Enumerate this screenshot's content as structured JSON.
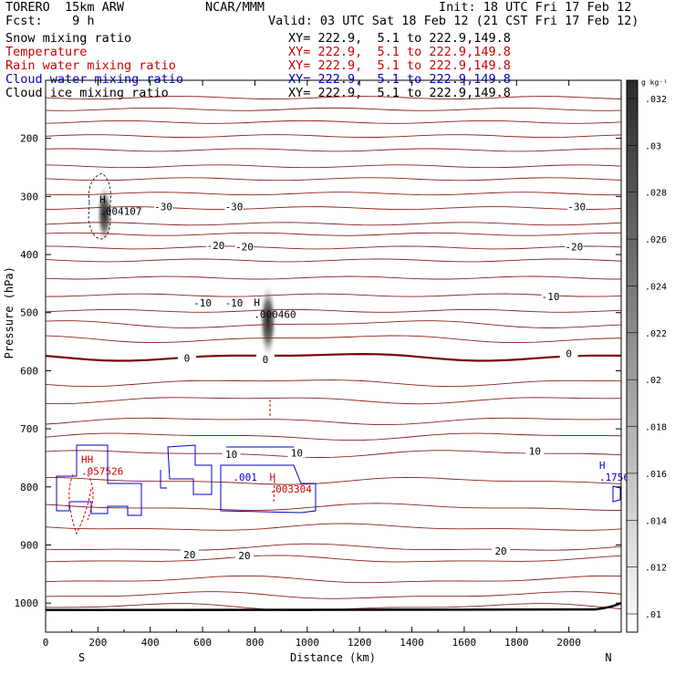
{
  "header": {
    "model": "TORERO  15km ARW",
    "center": "NCAR/MMM",
    "init": "Init: 18 UTC Fri 17 Feb 12",
    "fcst_label": "Fcst:    9 h",
    "valid": "Valid: 03 UTC Sat 18 Feb 12 (21 CST Fri 17 Feb 12)"
  },
  "fields": [
    {
      "name": "Snow mixing ratio",
      "xy": "XY= 222.9,  5.1 to 222.9,149.8",
      "color": "#000000"
    },
    {
      "name": "Temperature",
      "xy": "XY= 222.9,  5.1 to 222.9,149.8",
      "color": "#cc0000"
    },
    {
      "name": "Rain water mixing ratio",
      "xy": "XY= 222.9,  5.1 to 222.9,149.8",
      "color": "#cc0000"
    },
    {
      "name": "Cloud water mixing ratio",
      "xy": "XY= 222.9,  5.1 to 222.9,149.8",
      "color": "#0000cc"
    },
    {
      "name": "Cloud ice mixing ratio",
      "xy": "XY= 222.9,  5.1 to 222.9,149.8",
      "color": "#000000"
    }
  ],
  "chart_data": {
    "type": "contour-cross-section",
    "xlabel": "Distance (km)",
    "ylabel": "Pressure (hPa)",
    "xlim": [
      0,
      2200
    ],
    "ylim": [
      1050,
      100
    ],
    "x_ticks": [
      0,
      200,
      400,
      600,
      800,
      1000,
      1200,
      1400,
      1600,
      1800,
      2000
    ],
    "y_ticks": [
      200,
      300,
      400,
      500,
      600,
      700,
      800,
      900,
      1000
    ],
    "x_ends": [
      "S",
      "N"
    ],
    "temperature_contour_labels": [
      {
        "text": "-30",
        "x": 450,
        "p": 319
      },
      {
        "text": "-30",
        "x": 720,
        "p": 319
      },
      {
        "text": "-30",
        "x": 2030,
        "p": 319
      },
      {
        "text": "-20",
        "x": 650,
        "p": 386
      },
      {
        "text": "-20",
        "x": 760,
        "p": 388
      },
      {
        "text": "-20",
        "x": 2020,
        "p": 388
      },
      {
        "text": "-10",
        "x": 600,
        "p": 485
      },
      {
        "text": "-10",
        "x": 720,
        "p": 485
      },
      {
        "text": "-10",
        "x": 1930,
        "p": 474
      },
      {
        "text": "0",
        "x": 540,
        "p": 580
      },
      {
        "text": "0",
        "x": 840,
        "p": 582
      },
      {
        "text": "0",
        "x": 2000,
        "p": 572
      },
      {
        "text": "10",
        "x": 710,
        "p": 745
      },
      {
        "text": "10",
        "x": 960,
        "p": 743
      },
      {
        "text": "10",
        "x": 1870,
        "p": 740
      },
      {
        "text": "20",
        "x": 550,
        "p": 918
      },
      {
        "text": "20",
        "x": 760,
        "p": 920
      },
      {
        "text": "20",
        "x": 1740,
        "p": 912
      }
    ],
    "extrema": [
      {
        "marker": "H",
        "value": ".004107",
        "x": 220,
        "p": 322,
        "color": "#000000"
      },
      {
        "marker": "H",
        "value": ".000460",
        "x": 810,
        "p": 500,
        "color": "#000000"
      },
      {
        "marker": "HH",
        "value": ".057526",
        "x": 150,
        "p": 770,
        "color": "#cc0000"
      },
      {
        "marker": "H",
        "value": ".003304",
        "x": 870,
        "p": 800,
        "color": "#cc0000"
      },
      {
        "marker": "",
        "value": ".001",
        "x": 730,
        "p": 780,
        "color": "#0000cc"
      },
      {
        "marker": "H",
        "value": ".1756",
        "x": 2130,
        "p": 780,
        "color": "#0000cc"
      }
    ],
    "colorbar": {
      "unit": "g kg⁻¹",
      "levels": [
        ".01",
        ".012",
        ".014",
        ".016",
        ".018",
        ".02",
        ".022",
        ".024",
        ".026",
        ".028",
        ".03",
        ".032"
      ]
    }
  }
}
